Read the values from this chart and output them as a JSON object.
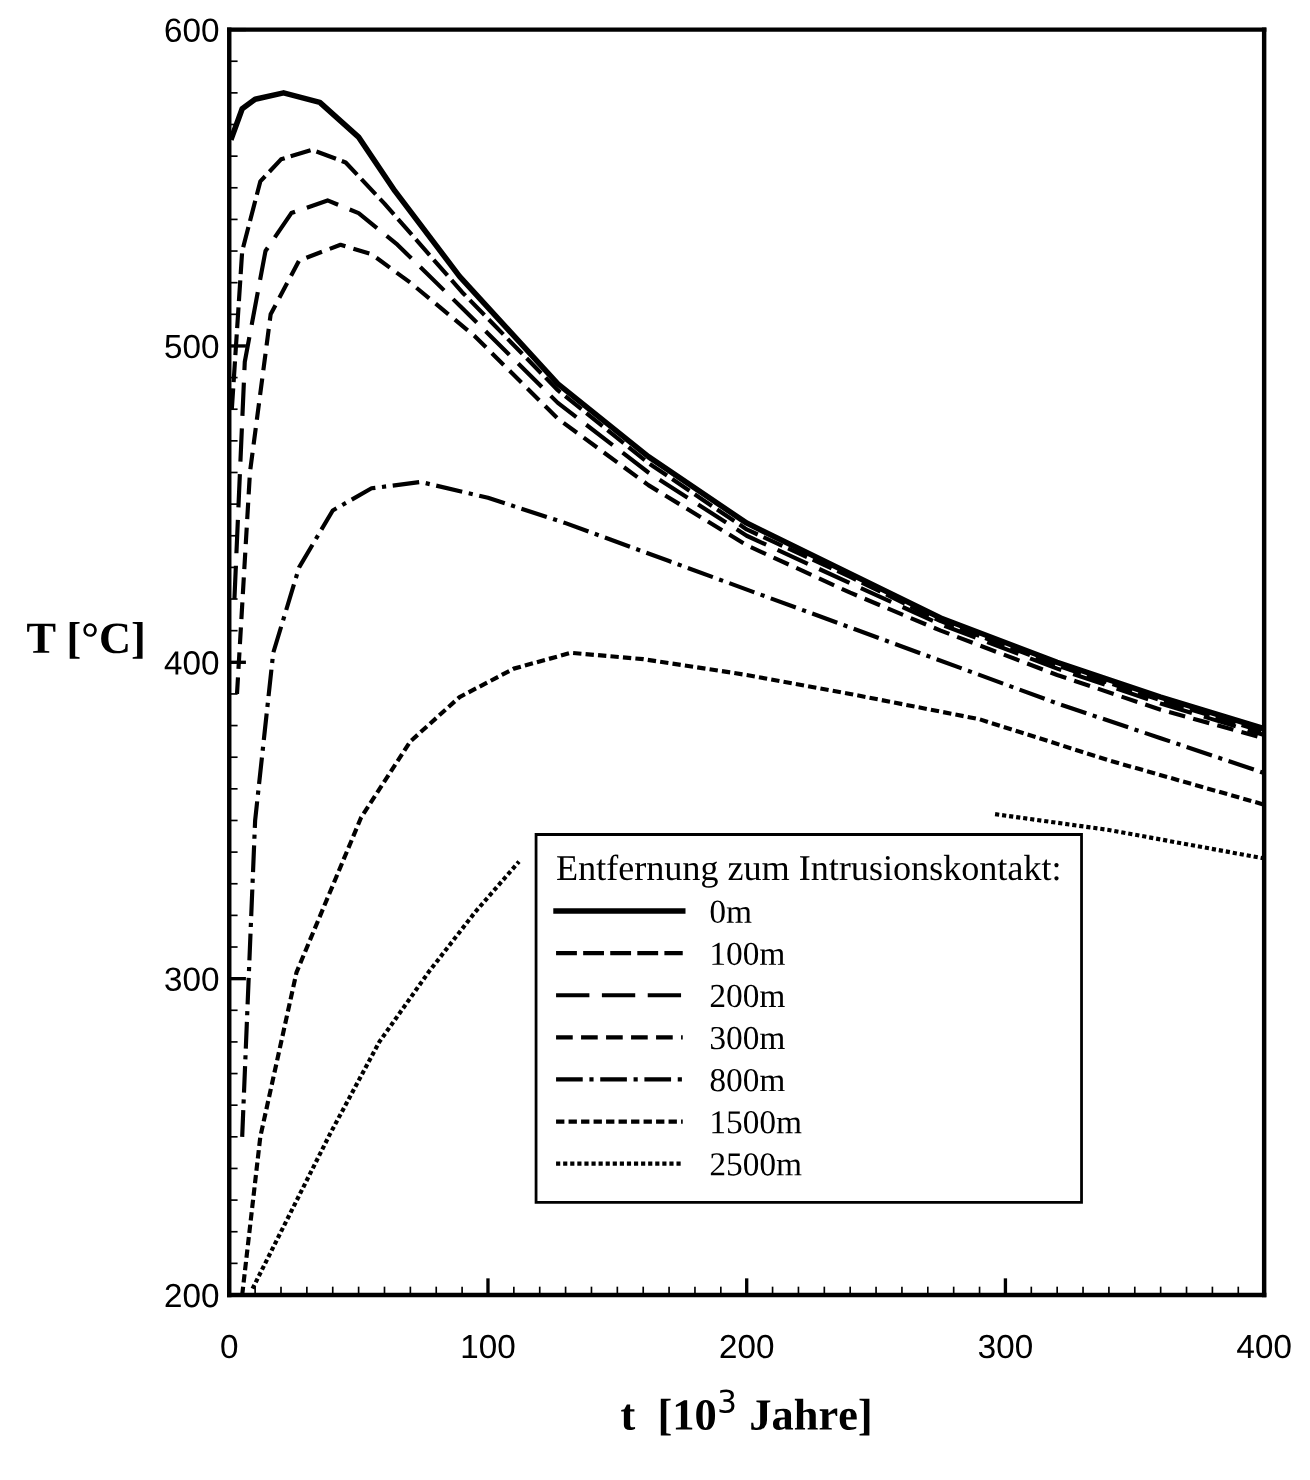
{
  "chart_data": {
    "type": "line",
    "xlabel": "t  [10$^{3}$ Jahre]",
    "ylabel": "T [°C]",
    "legend_title": "Entfernung zum Intrusionskontakt:",
    "xlim": [
      0,
      400
    ],
    "ylim": [
      200,
      600
    ],
    "xticks": [
      0,
      100,
      200,
      300,
      400
    ],
    "yticks": [
      200,
      300,
      400,
      500,
      600
    ],
    "grid": false,
    "legend": "bottom",
    "marker": "none",
    "series": [
      {
        "name": "0m",
        "color": "#000000",
        "line_style": "solid",
        "x": [
          1,
          5,
          10,
          21,
          35,
          50,
          64,
          89,
          127,
          162,
          200,
          240,
          275,
          320,
          360,
          400
        ],
        "values": [
          566,
          575,
          578,
          580,
          577,
          566,
          549,
          522,
          488,
          465,
          444,
          428,
          414,
          400,
          389,
          379
        ]
      },
      {
        "name": "100m",
        "color": "#000000",
        "line_style": "dashed",
        "x": [
          1,
          5,
          12,
          20,
          32,
          45,
          60,
          90,
          127,
          162,
          200,
          240,
          275,
          320,
          360,
          400
        ],
        "values": [
          480,
          530,
          552,
          559,
          562,
          558,
          545,
          517,
          486,
          463,
          442,
          427,
          413,
          399,
          388,
          378
        ]
      },
      {
        "name": "200m",
        "color": "#000000",
        "line_style": "dashed",
        "x": [
          2,
          6,
          14,
          24,
          38,
          50,
          65,
          90,
          127,
          162,
          200,
          240,
          275,
          320,
          360,
          400
        ],
        "values": [
          420,
          495,
          530,
          542,
          546,
          542,
          532,
          512,
          482,
          460,
          440,
          425,
          412,
          398,
          387,
          377
        ]
      },
      {
        "name": "300m",
        "color": "#000000",
        "line_style": "dashed",
        "x": [
          3,
          8,
          16,
          27,
          43,
          55,
          70,
          95,
          127,
          162,
          200,
          240,
          275,
          320,
          360,
          400
        ],
        "values": [
          390,
          460,
          510,
          527,
          532,
          529,
          520,
          503,
          477,
          456,
          437,
          422,
          410,
          396,
          385,
          376
        ]
      },
      {
        "name": "800m",
        "color": "#000000",
        "line_style": "dashdot",
        "x": [
          5,
          10,
          17,
          27,
          40,
          55,
          74,
          100,
          130,
          170,
          220,
          270,
          320,
          360,
          400
        ],
        "values": [
          250,
          350,
          403,
          430,
          448,
          455,
          457,
          452,
          444,
          432,
          417,
          402,
          387,
          376,
          365
        ]
      },
      {
        "name": "1500m",
        "color": "#000000",
        "line_style": "dotted",
        "x": [
          5,
          12,
          26,
          51,
          70,
          89,
          110,
          132,
          160,
          200,
          240,
          290,
          340,
          400
        ],
        "values": [
          200,
          250,
          302,
          351,
          375,
          389,
          398,
          403,
          401,
          396,
          390,
          382,
          369,
          355
        ]
      },
      {
        "name": "2500m",
        "color": "#000000",
        "line_style": "dotted",
        "x": [
          9,
          20,
          39,
          58,
          77,
          95,
          112,
          200,
          296,
          340,
          400
        ],
        "values": [
          202,
          220,
          251,
          280,
          302,
          321,
          337,
          null,
          352,
          347,
          338
        ]
      }
    ]
  }
}
